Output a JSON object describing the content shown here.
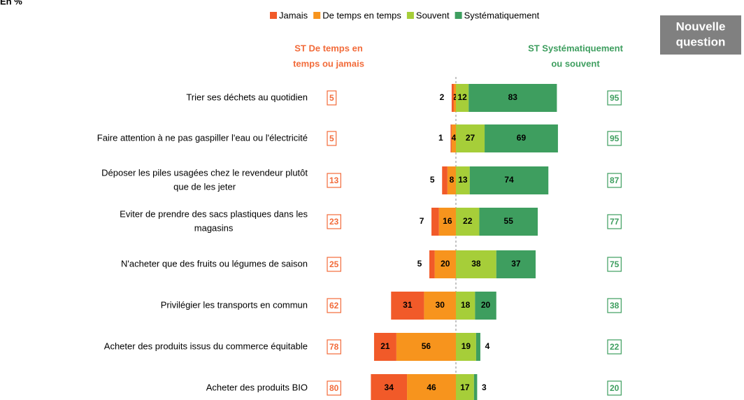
{
  "chart_data": {
    "type": "diverging-bar",
    "unit_note": "En %",
    "button": [
      "Nouvelle",
      "question"
    ],
    "left_header": [
      "ST De temps en",
      "temps ou jamais"
    ],
    "right_header": [
      "ST Systématiquement",
      "ou souvent"
    ],
    "categories": [
      [
        "Trier ses déchets au quotidien"
      ],
      [
        "Faire attention à ne pas gaspiller l'eau ou l'électricité"
      ],
      [
        "Déposer les piles usagées chez le revendeur plutôt",
        "que de les jeter"
      ],
      [
        "Eviter de prendre des sacs plastiques dans les",
        "magasins"
      ],
      [
        "N'acheter que des fruits ou légumes de saison"
      ],
      [
        "Privilégier les transports en commun"
      ],
      [
        "Acheter des produits issus du commerce équitable"
      ],
      [
        "Acheter des produits BIO"
      ]
    ],
    "series": [
      {
        "name": "Jamais",
        "color": "#f15a29",
        "side": "left",
        "values": [
          2,
          1,
          5,
          7,
          5,
          31,
          21,
          34
        ]
      },
      {
        "name": "De temps en temps",
        "color": "#f7941d",
        "side": "left",
        "values": [
          2,
          4,
          8,
          16,
          20,
          30,
          56,
          46
        ]
      },
      {
        "name": "Souvent",
        "color": "#a6ce39",
        "side": "right",
        "values": [
          12,
          27,
          13,
          22,
          38,
          18,
          19,
          17
        ]
      },
      {
        "name": "Systématiquement",
        "color": "#3e9e5f",
        "side": "right",
        "values": [
          83,
          69,
          74,
          55,
          37,
          20,
          4,
          3
        ]
      }
    ],
    "left_totals": {
      "color": "#f26b3a",
      "values": [
        5,
        5,
        13,
        23,
        25,
        62,
        78,
        80
      ]
    },
    "right_totals": {
      "color": "#3e9e5f",
      "values": [
        95,
        95,
        87,
        77,
        75,
        38,
        22,
        20
      ]
    }
  }
}
